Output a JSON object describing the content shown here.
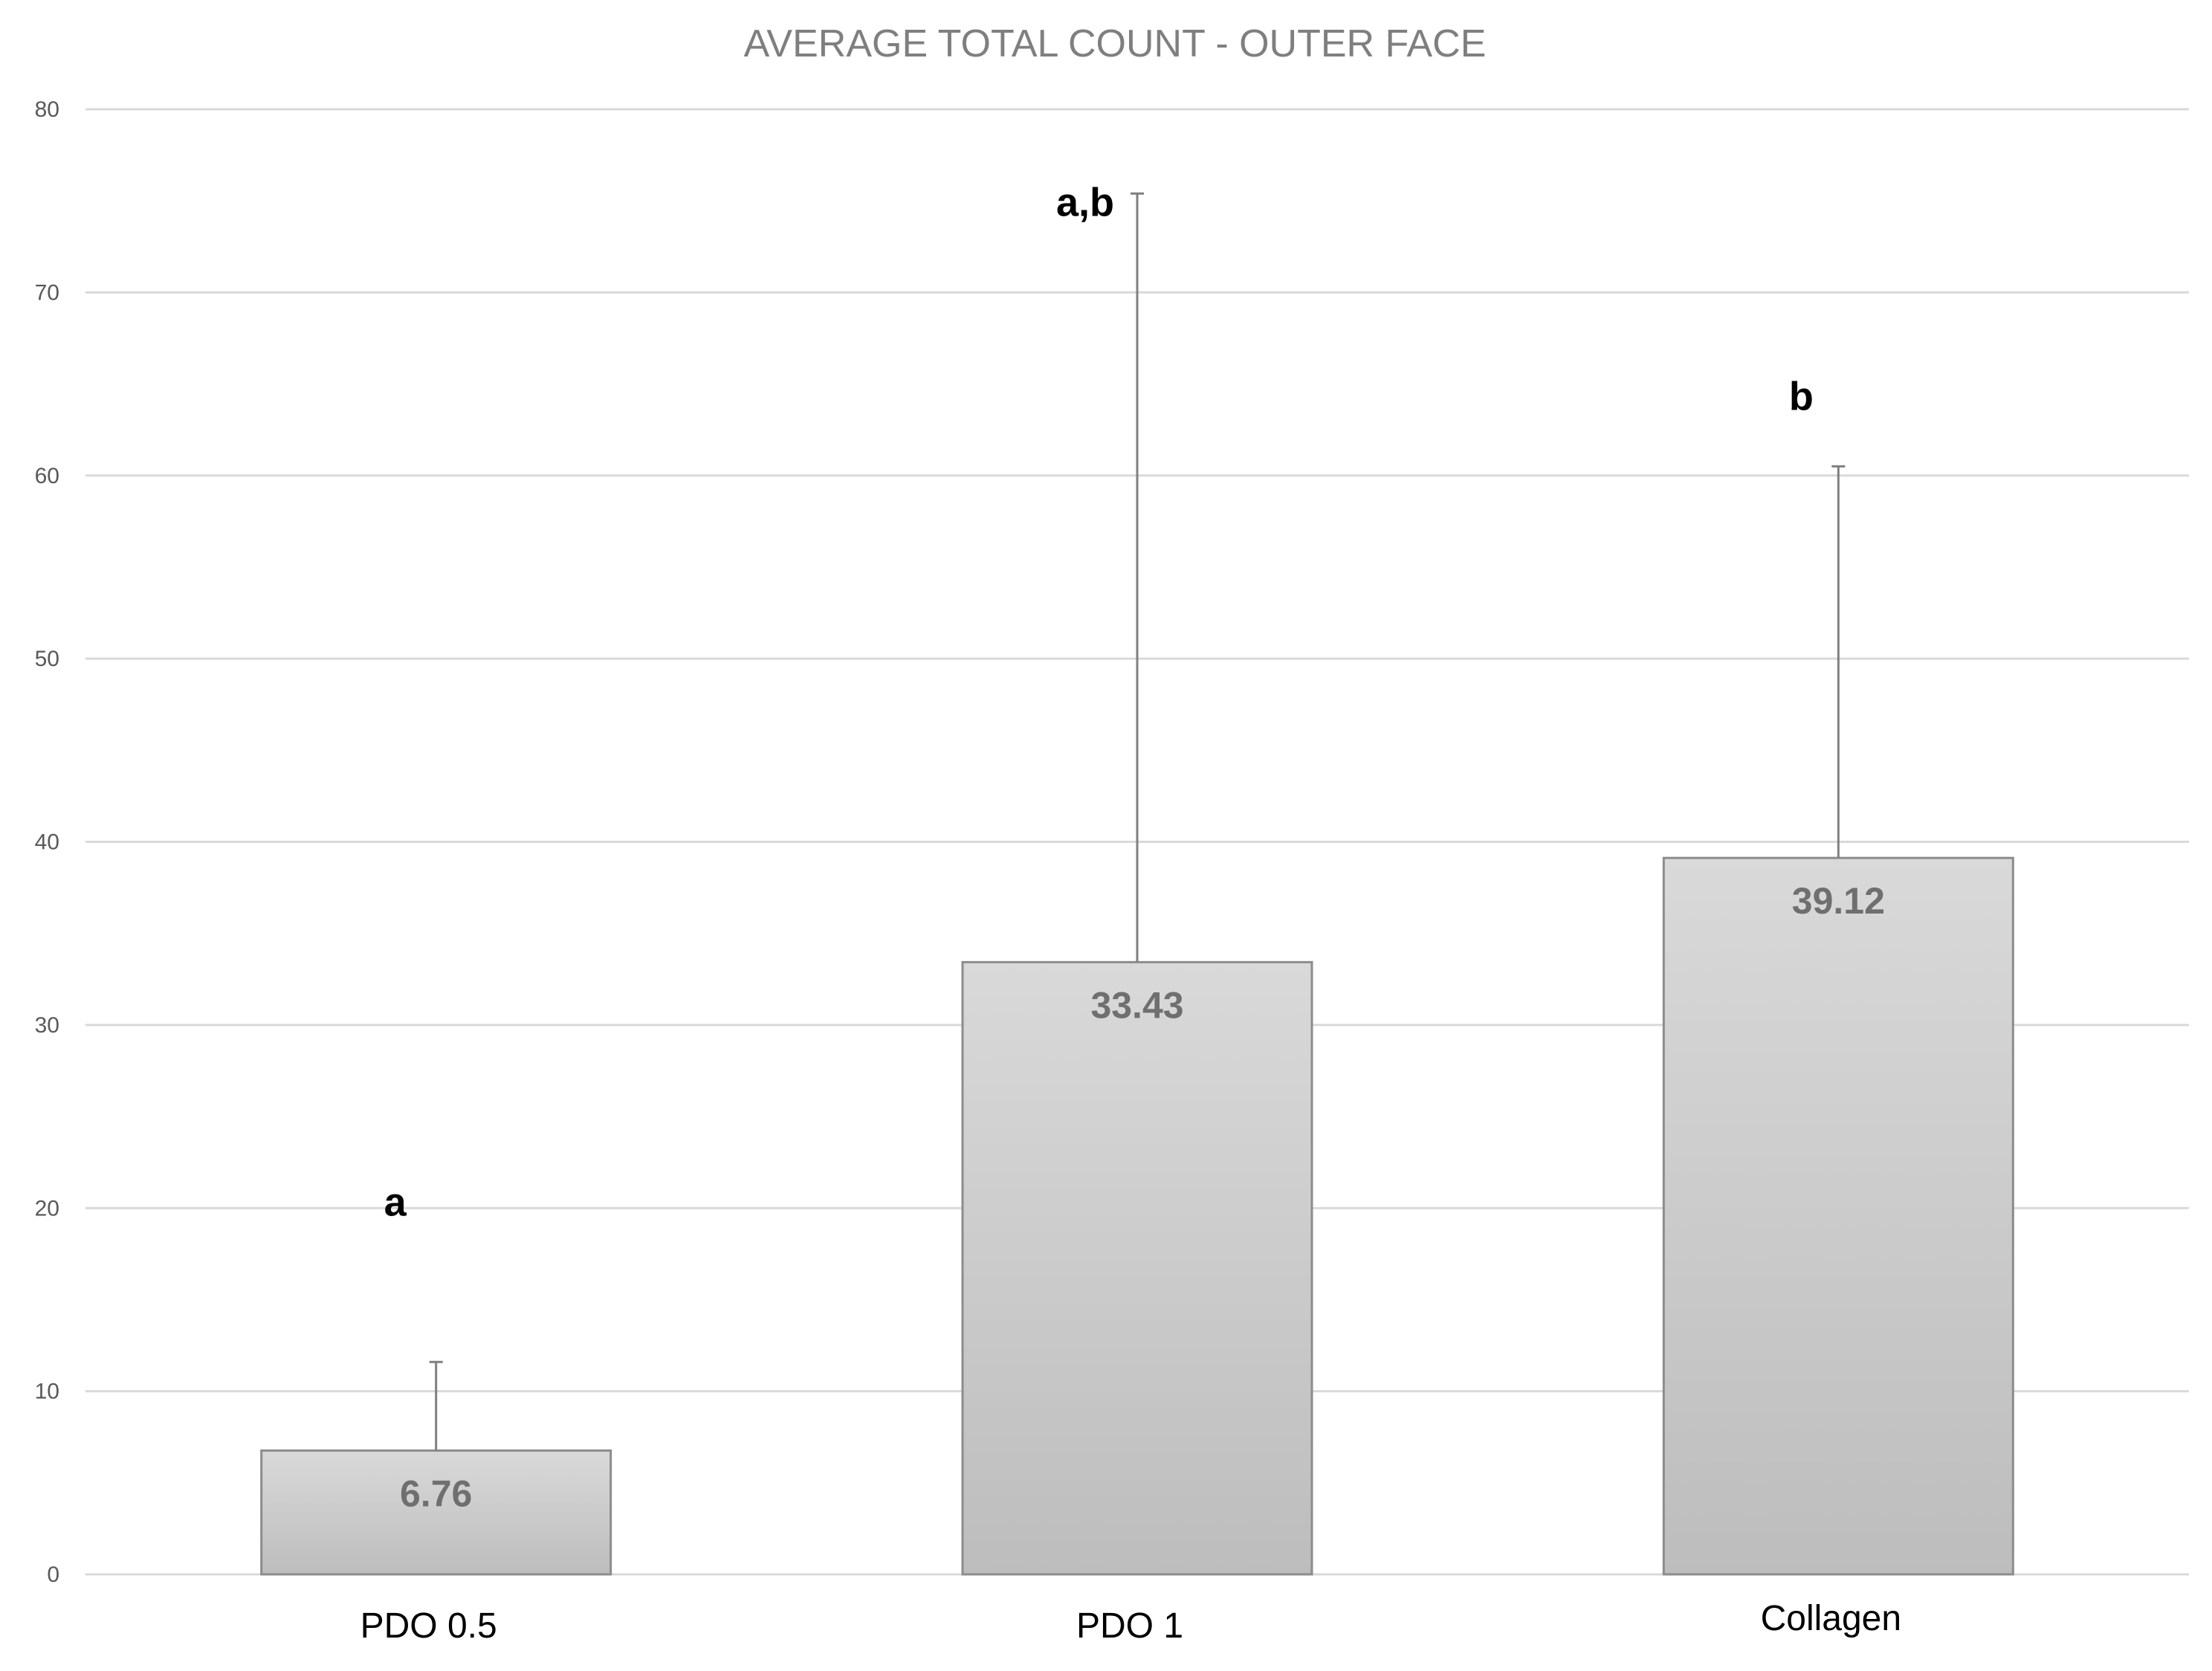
{
  "chart_data": {
    "type": "bar",
    "title": "AVERAGE TOTAL COUNT - OUTER FACE",
    "xlabel": "",
    "ylabel": "",
    "categories": [
      "PDO 0.5",
      "PDO 1",
      "Collagen"
    ],
    "values": [
      6.76,
      33.43,
      39.12
    ],
    "value_labels": [
      "6.76",
      "33.43",
      "39.12"
    ],
    "error_upper": [
      11.6,
      75.4,
      60.5
    ],
    "annotations": [
      "a",
      "a,b",
      "b"
    ],
    "ylim": [
      0,
      80
    ],
    "yticks": [
      0,
      10,
      20,
      30,
      40,
      50,
      60,
      70,
      80
    ],
    "ytick_labels": [
      "0",
      "10",
      "20",
      "30",
      "40",
      "50",
      "60",
      "70",
      "80"
    ],
    "grid": true,
    "legend": "none",
    "colors": {
      "bar_top": "#d9d9d9",
      "bar_bottom": "#bdbdbd",
      "bar_border": "#8c8c8c",
      "gridline": "#d9d9d9",
      "error_bar": "#808080",
      "axis_text": "#595959"
    }
  }
}
